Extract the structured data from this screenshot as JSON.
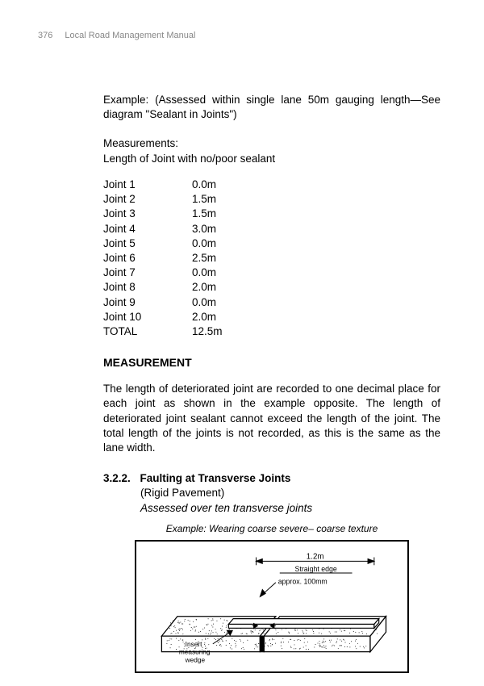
{
  "header": {
    "page_number": "376",
    "title": "Local Road Management Manual"
  },
  "example_para": "Example: (Assessed within single lane 50m gauging length—See diagram \"Sealant in Joints\")",
  "measurements_label": "Measurements:",
  "measurements_sub": "Length of Joint with no/poor sealant",
  "joints": [
    {
      "label": "Joint 1",
      "value": "0.0m"
    },
    {
      "label": "Joint 2",
      "value": "1.5m"
    },
    {
      "label": "Joint 3",
      "value": "1.5m"
    },
    {
      "label": "Joint 4",
      "value": "3.0m"
    },
    {
      "label": "Joint 5",
      "value": "0.0m"
    },
    {
      "label": "Joint 6",
      "value": "2.5m"
    },
    {
      "label": "Joint 7",
      "value": "0.0m"
    },
    {
      "label": "Joint 8",
      "value": "2.0m"
    },
    {
      "label": "Joint 9",
      "value": "0.0m"
    },
    {
      "label": "Joint 10",
      "value": "2.0m"
    },
    {
      "label": "TOTAL",
      "value": "12.5m"
    }
  ],
  "section_heading": "MEASUREMENT",
  "body_para": "The length of deteriorated joint are recorded to one decimal place for each joint as shown in the example opposite. The length of deteriorated joint sealant cannot exceed the length of the joint. The total length of the joints is not recorded, as this is the same as the lane width.",
  "subsection": {
    "number": "3.2.2.",
    "title": "Faulting at Transverse Joints",
    "sub1": "(Rigid Pavement)",
    "sub2": "Assessed over ten transverse joints"
  },
  "diagram": {
    "caption": "Example: Wearing coarse severe– coarse texture",
    "labels": {
      "dimension": "1.2m",
      "straight_edge": "Straight edge",
      "approx": "approx. 100mm",
      "insert": "Insert",
      "measuring": "measuring",
      "wedge": "wedge"
    },
    "colors": {
      "stroke": "#000000",
      "fill": "#ffffff"
    }
  }
}
